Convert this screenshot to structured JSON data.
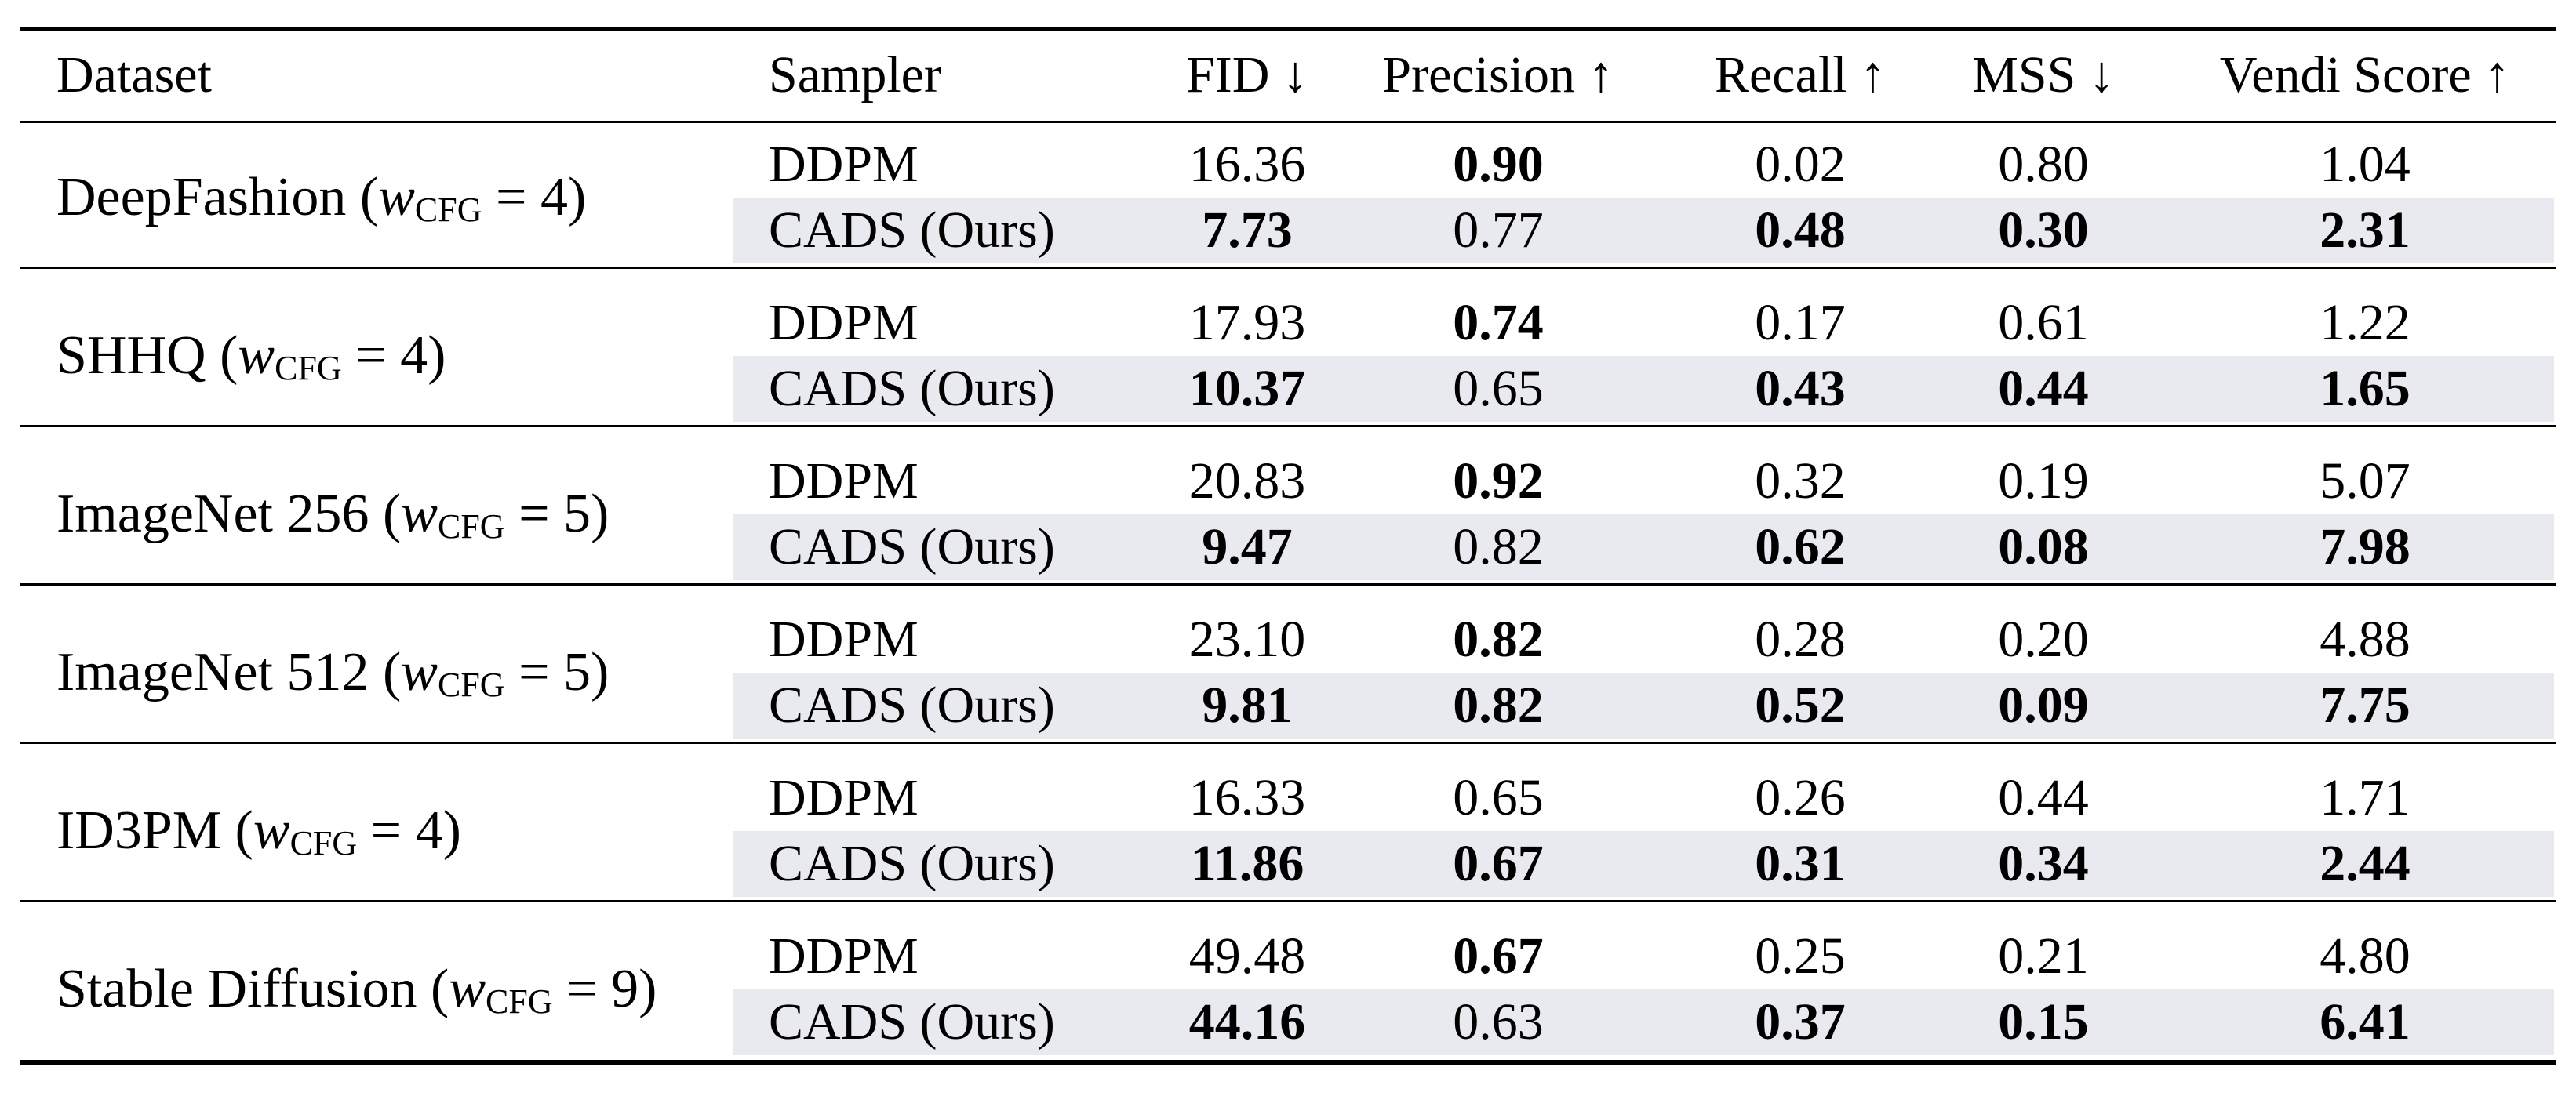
{
  "headers": {
    "dataset": "Dataset",
    "sampler": "Sampler",
    "fid": "FID ↓",
    "precision": "Precision ↑",
    "recall": "Recall ↑",
    "mss": "MSS ↓",
    "vendi": "Vendi Score ↑"
  },
  "groups": [
    {
      "dataset": "DeepFashion",
      "w_symbol": "w",
      "w_sub": "CFG",
      "w_value": " = 4)",
      "rows": [
        {
          "sampler": "DDPM",
          "fid": "16.36",
          "precision": "0.90",
          "recall": "0.02",
          "mss": "0.80",
          "vendi": "1.04"
        },
        {
          "sampler": "CADS (Ours)",
          "fid": "7.73",
          "precision": "0.77",
          "recall": "0.48",
          "mss": "0.30",
          "vendi": "2.31"
        }
      ]
    },
    {
      "dataset": "SHHQ",
      "w_symbol": "w",
      "w_sub": "CFG",
      "w_value": " = 4)",
      "rows": [
        {
          "sampler": "DDPM",
          "fid": "17.93",
          "precision": "0.74",
          "recall": "0.17",
          "mss": "0.61",
          "vendi": "1.22"
        },
        {
          "sampler": "CADS (Ours)",
          "fid": "10.37",
          "precision": "0.65",
          "recall": "0.43",
          "mss": "0.44",
          "vendi": "1.65"
        }
      ]
    },
    {
      "dataset": "ImageNet 256",
      "w_symbol": "w",
      "w_sub": "CFG",
      "w_value": " = 5)",
      "rows": [
        {
          "sampler": "DDPM",
          "fid": "20.83",
          "precision": "0.92",
          "recall": "0.32",
          "mss": "0.19",
          "vendi": "5.07"
        },
        {
          "sampler": "CADS (Ours)",
          "fid": "9.47",
          "precision": "0.82",
          "recall": "0.62",
          "mss": "0.08",
          "vendi": "7.98"
        }
      ]
    },
    {
      "dataset": "ImageNet 512",
      "w_symbol": "w",
      "w_sub": "CFG",
      "w_value": " = 5)",
      "rows": [
        {
          "sampler": "DDPM",
          "fid": "23.10",
          "precision": "0.82",
          "recall": "0.28",
          "mss": "0.20",
          "vendi": "4.88"
        },
        {
          "sampler": "CADS (Ours)",
          "fid": "9.81",
          "precision": "0.82",
          "recall": "0.52",
          "mss": "0.09",
          "vendi": "7.75"
        }
      ]
    },
    {
      "dataset": "ID3PM",
      "w_symbol": "w",
      "w_sub": "CFG",
      "w_value": " = 4)",
      "rows": [
        {
          "sampler": "DDPM",
          "fid": "16.33",
          "precision": "0.65",
          "recall": "0.26",
          "mss": "0.44",
          "vendi": "1.71"
        },
        {
          "sampler": "CADS (Ours)",
          "fid": "11.86",
          "precision": "0.67",
          "recall": "0.31",
          "mss": "0.34",
          "vendi": "2.44"
        }
      ]
    },
    {
      "dataset": "Stable Diffusion",
      "w_symbol": "w",
      "w_sub": "CFG",
      "w_value": " = 9)",
      "rows": [
        {
          "sampler": "DDPM",
          "fid": "49.48",
          "precision": "0.67",
          "recall": "0.25",
          "mss": "0.21",
          "vendi": "4.80"
        },
        {
          "sampler": "CADS (Ours)",
          "fid": "44.16",
          "precision": "0.63",
          "recall": "0.37",
          "mss": "0.15",
          "vendi": "6.41"
        }
      ]
    }
  ],
  "bold": [
    {
      "fid": false,
      "precision": true,
      "recall": false,
      "mss": false,
      "vendi": false
    },
    {
      "fid": true,
      "precision": false,
      "recall": true,
      "mss": true,
      "vendi": true
    },
    {
      "fid": false,
      "precision": true,
      "recall": false,
      "mss": false,
      "vendi": false
    },
    {
      "fid": true,
      "precision": false,
      "recall": true,
      "mss": true,
      "vendi": true
    },
    {
      "fid": false,
      "precision": true,
      "recall": false,
      "mss": false,
      "vendi": false
    },
    {
      "fid": true,
      "precision": false,
      "recall": true,
      "mss": true,
      "vendi": true
    },
    {
      "fid": false,
      "precision": true,
      "recall": false,
      "mss": false,
      "vendi": false
    },
    {
      "fid": true,
      "precision": true,
      "recall": true,
      "mss": true,
      "vendi": true
    },
    {
      "fid": false,
      "precision": false,
      "recall": false,
      "mss": false,
      "vendi": false
    },
    {
      "fid": true,
      "precision": true,
      "recall": true,
      "mss": true,
      "vendi": true
    },
    {
      "fid": false,
      "precision": true,
      "recall": false,
      "mss": false,
      "vendi": false
    },
    {
      "fid": true,
      "precision": false,
      "recall": true,
      "mss": true,
      "vendi": true
    }
  ],
  "colors": {
    "shade": "#e9e9f0",
    "text": "#000000"
  }
}
